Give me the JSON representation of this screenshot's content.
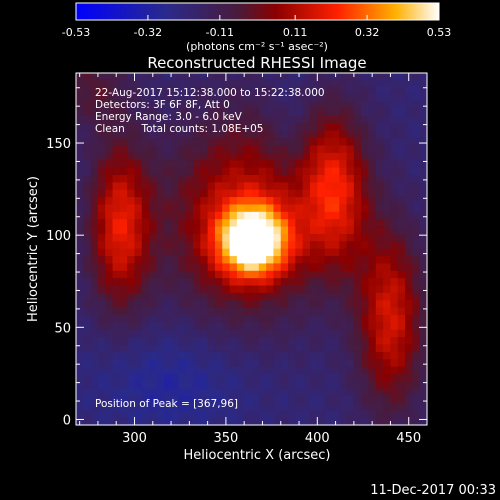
{
  "colorbar": {
    "ticks": [
      "-0.53",
      "-0.32",
      "-0.11",
      "0.11",
      "0.32",
      "0.53"
    ],
    "unit_label": "(photons cm⁻² s⁻¹ asec⁻²)"
  },
  "chart_data": {
    "type": "heatmap",
    "title": "Reconstructed RHESSI Image",
    "xlabel": "Heliocentric X (arcsec)",
    "ylabel": "Heliocentric Y (arcsec)",
    "xlim": [
      268,
      460
    ],
    "ylim": [
      -3,
      188
    ],
    "x_ticks": [
      300,
      350,
      400,
      450
    ],
    "y_ticks": [
      0,
      50,
      100,
      150
    ],
    "colorbar_range": [
      -0.53,
      0.53
    ],
    "info_lines": [
      "22-Aug-2017 15:12:38.000 to 15:22:38.000",
      "Detectors: 3F 6F 8F, Att 0",
      "Energy Range: 3.0 - 6.0 keV",
      "Clean     Total counts: 1.08E+05"
    ],
    "peak_annotation": "Position of Peak = [367,96]",
    "sources": [
      {
        "x": 365,
        "y": 97,
        "peak": 0.53
      },
      {
        "x": 290,
        "y": 105,
        "peak": 0.2
      },
      {
        "x": 415,
        "y": 120,
        "peak": 0.2
      },
      {
        "x": 440,
        "y": 60,
        "peak": 0.2
      }
    ]
  },
  "footer": {
    "timestamp": "11-Dec-2017 00:33"
  }
}
